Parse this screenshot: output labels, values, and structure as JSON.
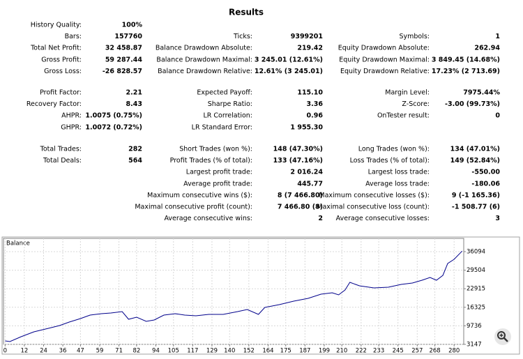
{
  "results": {
    "title": "Results",
    "groups": [
      [
        {
          "left": [
            "History Quality:",
            "100%"
          ]
        },
        {
          "left": [
            "Bars:",
            "157760"
          ],
          "middle": [
            "Ticks:",
            "9399201"
          ],
          "right": [
            "Symbols:",
            "1"
          ]
        },
        {
          "left": [
            "Total Net Profit:",
            "32 458.87"
          ],
          "middle": [
            "Balance Drawdown Absolute:",
            "219.42"
          ],
          "right": [
            "Equity Drawdown Absolute:",
            "262.94"
          ]
        },
        {
          "left": [
            "Gross Profit:",
            "59 287.44"
          ],
          "middle": [
            "Balance Drawdown Maximal:",
            "3 245.01 (12.61%)"
          ],
          "right": [
            "Equity Drawdown Maximal:",
            "3 849.45 (14.68%)"
          ]
        },
        {
          "left": [
            "Gross Loss:",
            "-26 828.57"
          ],
          "middle": [
            "Balance Drawdown Relative:",
            "12.61% (3 245.01)"
          ],
          "right": [
            "Equity Drawdown Relative:",
            "17.23% (2 713.69)"
          ]
        }
      ],
      [
        {
          "left": [
            "Profit Factor:",
            "2.21"
          ],
          "middle": [
            "Expected Payoff:",
            "115.10"
          ],
          "right": [
            "Margin Level:",
            "7975.44%"
          ]
        },
        {
          "left": [
            "Recovery Factor:",
            "8.43"
          ],
          "middle": [
            "Sharpe Ratio:",
            "3.36"
          ],
          "right": [
            "Z-Score:",
            "-3.00 (99.73%)"
          ]
        },
        {
          "left": [
            "AHPR:",
            "1.0075 (0.75%)"
          ],
          "middle": [
            "LR Correlation:",
            "0.96"
          ],
          "right": [
            "OnTester result:",
            "0"
          ]
        },
        {
          "left": [
            "GHPR:",
            "1.0072 (0.72%)"
          ],
          "middle": [
            "LR Standard Error:",
            "1 955.30"
          ]
        }
      ],
      [
        {
          "left": [
            "Total Trades:",
            "282"
          ],
          "middle": [
            "Short Trades (won %):",
            "148 (47.30%)"
          ],
          "right": [
            "Long Trades (won %):",
            "134 (47.01%)"
          ]
        },
        {
          "left": [
            "Total Deals:",
            "564"
          ],
          "middle": [
            "Profit Trades (% of total):",
            "133 (47.16%)"
          ],
          "right": [
            "Loss Trades (% of total):",
            "149 (52.84%)"
          ]
        },
        {
          "middle": [
            "Largest profit trade:",
            "2 016.24"
          ],
          "right": [
            "Largest loss trade:",
            "-550.00"
          ]
        },
        {
          "middle": [
            "Average profit trade:",
            "445.77"
          ],
          "right": [
            "Average loss trade:",
            "-180.06"
          ]
        },
        {
          "middle": [
            "Maximum consecutive wins ($):",
            "8 (7 466.80)"
          ],
          "right": [
            "Maximum consecutive losses ($):",
            "9 (-1 165.36)"
          ]
        },
        {
          "middle": [
            "Maximal consecutive profit (count):",
            "7 466.80 (8)"
          ],
          "right": [
            "Maximal consecutive loss (count):",
            "-1 508.77 (6)"
          ]
        },
        {
          "middle": [
            "Average consecutive wins:",
            "2"
          ],
          "right": [
            "Average consecutive losses:",
            "3"
          ]
        }
      ]
    ]
  },
  "chart_data": {
    "type": "line",
    "title": "Balance",
    "color": "#00008b",
    "x": [
      0,
      3,
      10,
      18,
      27,
      34,
      40,
      47,
      53,
      60,
      66,
      73,
      77,
      82,
      88,
      93,
      99,
      106,
      112,
      119,
      127,
      136,
      145,
      151,
      158,
      162,
      171,
      180,
      189,
      197,
      204,
      208,
      212,
      215,
      221,
      230,
      239,
      247,
      254,
      260,
      265,
      269,
      273,
      276,
      280,
      285
    ],
    "values": [
      4385,
      4140,
      5870,
      7606,
      8844,
      9835,
      11074,
      12312,
      13550,
      14045,
      14292,
      14788,
      12064,
      12807,
      11321,
      11816,
      13550,
      14045,
      13550,
      13302,
      13798,
      13798,
      14788,
      15531,
      13798,
      16275,
      17266,
      18504,
      19495,
      20981,
      21476,
      20733,
      22467,
      25192,
      23953,
      23210,
      23458,
      24449,
      24944,
      25935,
      26926,
      25935,
      27669,
      31880,
      33366,
      36300
    ],
    "xlim": [
      -1,
      286
    ],
    "ylim": [
      3147,
      40800
    ],
    "xticks": [
      0,
      12,
      24,
      36,
      47,
      59,
      71,
      82,
      94,
      105,
      117,
      129,
      140,
      152,
      164,
      175,
      187,
      199,
      210,
      222,
      233,
      245,
      257,
      268,
      280
    ],
    "yticks": [
      3147,
      9736,
      16325,
      22915,
      29504,
      36094
    ],
    "grid": true
  }
}
